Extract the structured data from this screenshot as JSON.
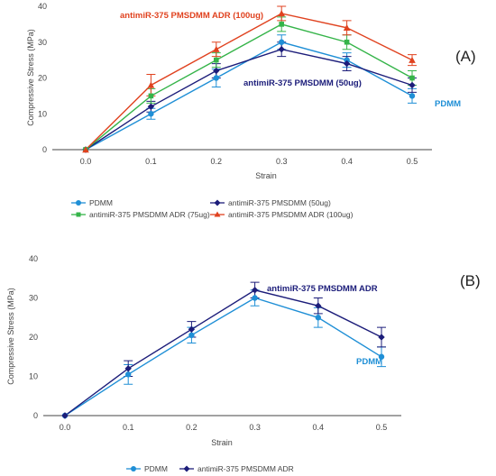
{
  "colors": {
    "pdmm": "#1f8fd6",
    "pmsdmm50": "#1c1d7a",
    "adr75": "#35b449",
    "adr100": "#e0421f",
    "axis": "#444444",
    "error": "#333333"
  },
  "chart_data": [
    {
      "type": "line",
      "panel_label": "(A)",
      "xlabel": "Strain",
      "ylabel": "Compressive Stress (MPa)",
      "x": [
        0.0,
        0.1,
        0.2,
        0.3,
        0.4,
        0.5
      ],
      "x_tick_labels": [
        "0.0",
        "0.1",
        "0.2",
        "0.3",
        "0.4",
        "0.5"
      ],
      "y_ticks": [
        0,
        10,
        20,
        30,
        40
      ],
      "ylim": [
        0,
        40
      ],
      "grid": false,
      "legend_position": "bottom",
      "series": [
        {
          "name": "PDMM",
          "color_key": "pdmm",
          "marker": "circle",
          "values": [
            0,
            10,
            20,
            30,
            25,
            15
          ],
          "errors": [
            0,
            1.5,
            2.5,
            2.0,
            2.0,
            2.0
          ]
        },
        {
          "name": "antimiR-375 PMSDMM (50ug)",
          "color_key": "pmsdmm50",
          "marker": "diamond",
          "values": [
            0,
            12,
            22,
            28,
            24,
            18
          ],
          "errors": [
            0,
            1.5,
            2.0,
            2.0,
            2.0,
            2.0
          ]
        },
        {
          "name": "antimiR-375 PMSDMM ADR (75ug)",
          "color_key": "adr75",
          "marker": "square",
          "values": [
            0,
            15,
            25,
            35,
            30,
            20
          ],
          "errors": [
            0,
            2.0,
            2.0,
            2.0,
            2.0,
            2.0
          ]
        },
        {
          "name": "antimiR-375 PMSDMM ADR (100ug)",
          "color_key": "adr100",
          "marker": "triangle",
          "values": [
            0,
            18,
            28,
            38,
            34,
            25
          ],
          "errors": [
            0,
            3.0,
            2.0,
            2.0,
            2.0,
            1.5
          ]
        }
      ],
      "annotations": [
        {
          "text": "antimiR-375 PMSDMM ADR (100ug)",
          "color_key": "adr100"
        },
        {
          "text": "antimiR-375 PMSDMM (50ug)",
          "color_key": "pmsdmm50"
        },
        {
          "text": "PDMM",
          "color_key": "pdmm"
        }
      ]
    },
    {
      "type": "line",
      "panel_label": "(B)",
      "xlabel": "Strain",
      "ylabel": "Compressive Stress (MPa)",
      "x": [
        0.0,
        0.1,
        0.2,
        0.3,
        0.4,
        0.5
      ],
      "x_tick_labels": [
        "0.0",
        "0.1",
        "0.2",
        "0.3",
        "0.4",
        "0.5"
      ],
      "y_ticks": [
        0,
        10,
        20,
        30,
        40
      ],
      "ylim": [
        0,
        40
      ],
      "grid": false,
      "legend_position": "bottom",
      "series": [
        {
          "name": "PDMM",
          "color_key": "pdmm",
          "marker": "circle",
          "values": [
            0,
            10.5,
            20.5,
            30,
            25,
            15
          ],
          "errors": [
            0,
            2.5,
            2.0,
            2.0,
            2.5,
            2.5
          ]
        },
        {
          "name": "antimiR-375 PMSDMM ADR",
          "color_key": "pmsdmm50",
          "marker": "diamond",
          "values": [
            0,
            12,
            22,
            32,
            28,
            20
          ],
          "errors": [
            0,
            2.0,
            2.0,
            2.0,
            2.0,
            2.5
          ]
        }
      ],
      "annotations": [
        {
          "text": "antimiR-375 PMSDMM ADR",
          "color_key": "pmsdmm50"
        },
        {
          "text": "PDMM",
          "color_key": "pdmm"
        }
      ]
    }
  ]
}
